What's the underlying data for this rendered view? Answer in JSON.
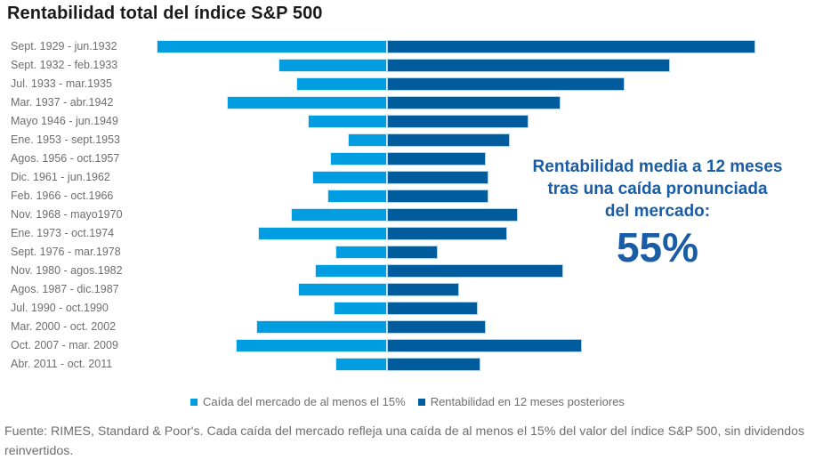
{
  "title": "Rentabilidad total del índice S&P 500",
  "annotation": {
    "lines": [
      "Rentabilidad media a 12 meses",
      "tras una caída pronunciada",
      "del mercado:"
    ],
    "value": "55%"
  },
  "legend": [
    {
      "label": "Caída del mercado de al menos el 15%",
      "color": "#009ee0"
    },
    {
      "label": "Rentabilidad en 12 meses posteriores",
      "color": "#005c9d"
    }
  ],
  "footer": {
    "text": "Fuente: RIMES, Standard & Poor's. Cada caída del mercado refleja una caída de al menos el 15% del valor del índice S&P 500, sin dividendos reinvertidos."
  },
  "colors": {
    "light_blue": "#009ee0",
    "dark_blue": "#005c9d",
    "annotation_blue": "#1a5ca5",
    "title_text": "#1a1a1a",
    "gray_text": "#6d6e71",
    "background": "#ffffff"
  },
  "chart_data": {
    "type": "bar",
    "variant": "horizontal-diverging",
    "title": "Rentabilidad total del índice S&P 500",
    "unit": "%",
    "grid": false,
    "legend_position": "bottom",
    "axis_center_value": 0,
    "xlim": [
      -90,
      145
    ],
    "categories": [
      "Sept. 1929 - jun.1932",
      "Sept. 1932 - feb.1933",
      "Jul. 1933 - mar.1935",
      "Mar. 1937 - abr.1942",
      "Mayo 1946 - jun.1949",
      "Ene. 1953 - sept.1953",
      "Agos. 1956 - oct.1957",
      "Dic. 1961 - jun.1962",
      "Feb. 1966 - oct.1966",
      "Nov. 1968 - mayo1970",
      "Ene. 1973 - oct.1974",
      "Sept. 1976 - mar.1978",
      "Nov. 1980 - agos.1982",
      "Agos. 1987 - dic.1987",
      "Jul. 1990 - oct.1990",
      "Mar. 2000 - oct. 2002",
      "Oct. 2007 - mar. 2009",
      "Abr. 2011 - oct. 2011"
    ],
    "series": [
      {
        "name": "Caída del mercado de al menos el 15%",
        "color": "#009ee0",
        "direction": "left",
        "values": [
          -86.2,
          -40.6,
          -33.9,
          -60.0,
          -29.6,
          -14.8,
          -21.5,
          -28.0,
          -22.2,
          -36.1,
          -48.2,
          -19.4,
          -27.1,
          -33.5,
          -19.9,
          -49.1,
          -56.8,
          -19.4
        ]
      },
      {
        "name": "Rentabilidad en 12 meses posteriores",
        "color": "#005c9d",
        "direction": "right",
        "values": [
          138,
          106,
          89,
          65,
          53,
          46,
          37,
          38,
          38,
          49,
          45,
          19,
          66,
          27,
          34,
          37,
          73,
          35
        ]
      }
    ],
    "summary_annotation": {
      "text": "Rentabilidad media a 12 meses tras una caída pronunciada del mercado:",
      "value": "55%"
    }
  }
}
